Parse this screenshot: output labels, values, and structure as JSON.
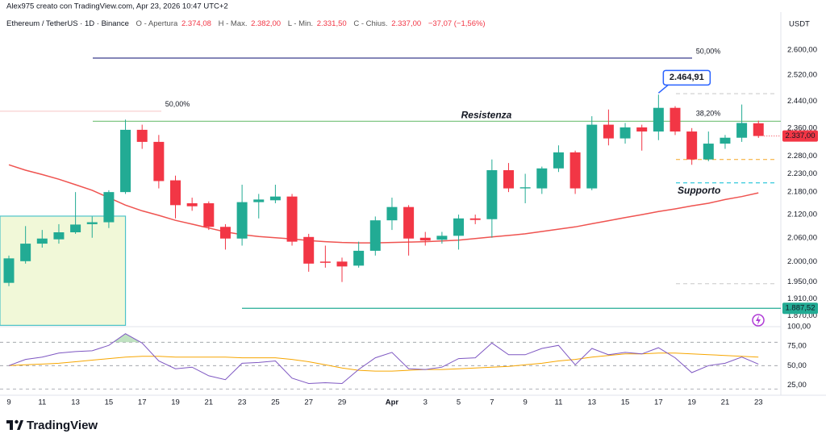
{
  "header": {
    "author": "Alex975 creato con TradingView.com, Apr 23, 2026 10:47 UTC+2",
    "o_label": "O - Apertura",
    "o": "2.374,08",
    "h_label": "H - Max.",
    "h": "2.382,00",
    "l_label": "L - Min.",
    "l": "2.331,50",
    "c_label": "C - Chius.",
    "c": "2.337,00",
    "change": "−37,07 (−1,56%)"
  },
  "footer": {
    "brand": "TradingView"
  },
  "chart_data": [
    {
      "type": "candlestick",
      "title": "Ethereum / TetherUS · 1D · Binance",
      "y_unit": "USDT",
      "categories": [
        "9",
        null,
        "11",
        null,
        "13",
        null,
        "15",
        null,
        "17",
        null,
        "19",
        null,
        "21",
        null,
        "23",
        null,
        "25",
        null,
        "27",
        null,
        "29",
        null,
        null,
        "Apr",
        null,
        "3",
        null,
        "5",
        null,
        "7",
        null,
        "9",
        null,
        "11",
        null,
        "13",
        null,
        "15",
        null,
        "17",
        null,
        "19",
        null,
        "21",
        null,
        "23"
      ],
      "open": [
        1948,
        2001,
        2045,
        2056,
        2074,
        2095,
        2100,
        2180,
        2355,
        2320,
        2212,
        2150,
        2150,
        2088,
        2058,
        2153,
        2158,
        2168,
        2062,
        2000,
        2000,
        1990,
        2027,
        2105,
        2140,
        2060,
        2055,
        2065,
        2110,
        2108,
        2240,
        2190,
        2190,
        2245,
        2290,
        2190,
        2370,
        2330,
        2362,
        2350,
        2420,
        2350,
        2270,
        2315,
        2332,
        2374.08
      ],
      "high": [
        2015,
        2090,
        2080,
        2095,
        2180,
        2115,
        2185,
        2385,
        2370,
        2340,
        2225,
        2165,
        2155,
        2095,
        2200,
        2175,
        2200,
        2175,
        2070,
        2040,
        2010,
        2050,
        2115,
        2165,
        2145,
        2075,
        2075,
        2120,
        2120,
        2270,
        2260,
        2230,
        2250,
        2310,
        2295,
        2395,
        2415,
        2375,
        2370,
        2460,
        2425,
        2360,
        2350,
        2340,
        2430,
        2382
      ],
      "low": [
        1940,
        1995,
        2035,
        2045,
        2070,
        2060,
        2085,
        2175,
        2300,
        2190,
        2110,
        2130,
        2080,
        2030,
        2040,
        2110,
        2150,
        2040,
        1975,
        1985,
        1950,
        1985,
        2015,
        2080,
        2015,
        2040,
        2045,
        2030,
        2095,
        2060,
        2180,
        2150,
        2175,
        2235,
        2175,
        2185,
        2310,
        2315,
        2295,
        2325,
        2340,
        2255,
        2265,
        2300,
        2320,
        2331.5
      ],
      "close": [
        2008,
        2045,
        2058,
        2074,
        2094,
        2100,
        2180,
        2355,
        2320,
        2210,
        2145,
        2142,
        2088,
        2058,
        2153,
        2160,
        2168,
        2050,
        1995,
        1997,
        1988,
        2027,
        2105,
        2140,
        2058,
        2053,
        2065,
        2110,
        2106,
        2240,
        2190,
        2193,
        2245,
        2290,
        2190,
        2370,
        2330,
        2362,
        2350,
        2420,
        2350,
        2270,
        2315,
        2332,
        2375,
        2337
      ],
      "up_color": "#22ab94",
      "down_color": "#f23645",
      "ma": {
        "color": "#ef5350",
        "values": [
          2255,
          2240,
          2228,
          2215,
          2200,
          2185,
          2165,
          2145,
          2130,
          2118,
          2105,
          2095,
          2085,
          2075,
          2068,
          2063,
          2060,
          2057,
          2053,
          2050,
          2048,
          2047,
          2047,
          2048,
          2049,
          2050,
          2052,
          2054,
          2058,
          2062,
          2066,
          2070,
          2076,
          2082,
          2088,
          2096,
          2104,
          2112,
          2120,
          2128,
          2135,
          2143,
          2150,
          2160,
          2168,
          2178
        ]
      },
      "zone": {
        "low": 1848,
        "high": 2116,
        "color": "#f1f8d8",
        "border": "#4dc3c9"
      },
      "log_scale": true,
      "grid": false,
      "ylim": [
        1845,
        2725
      ],
      "yticks": [
        {
          "value": 2600,
          "label": "2.600,00"
        },
        {
          "value": 2520,
          "label": "2.520,00"
        },
        {
          "value": 2440,
          "label": "2.440,00"
        },
        {
          "value": 2360,
          "label": "2.360,00"
        },
        {
          "value": 2280,
          "label": "2.280,00"
        },
        {
          "value": 2230,
          "label": "2.230,00"
        },
        {
          "value": 2180,
          "label": "2.180,00"
        },
        {
          "value": 2120,
          "label": "2.120,00"
        },
        {
          "value": 2060,
          "label": "2.060,00"
        },
        {
          "value": 2000,
          "label": "2.000,00"
        },
        {
          "value": 1950,
          "label": "1.950,00"
        },
        {
          "value": 1910,
          "label": "1.910,00"
        },
        {
          "value": 1870,
          "label": "1.870,00"
        }
      ],
      "last": {
        "value": 2337,
        "label": "2.337,00",
        "color": "#f23645"
      },
      "annotations": [
        {
          "kind": "hline",
          "value": 2574,
          "color": "#3b3f8c",
          "label": "50,00%",
          "label_color": "#5b5fc7"
        },
        {
          "kind": "hline",
          "value": 2410,
          "color": "#f8d0d1",
          "label": "50,00%",
          "label_color": "#f0605d"
        },
        {
          "kind": "hline",
          "value": 2380,
          "color": "#81c784",
          "label": "Resistenza",
          "label_color": "#f23645",
          "level_label": "38,20%",
          "level_color": "#66bb6a"
        },
        {
          "kind": "hline",
          "value": 2463,
          "color": "#c8c8c8",
          "dashed": true
        },
        {
          "kind": "hline",
          "value": 2270,
          "color": "#f5a623",
          "dashed": true
        },
        {
          "kind": "hline",
          "value": 2205,
          "color": "#00bcd4",
          "dashed": true,
          "label": "Supporto",
          "label_color": "#00bcd4"
        },
        {
          "kind": "hline",
          "value": 1946,
          "color": "#c8c8c8",
          "dashed": true
        },
        {
          "kind": "hline",
          "value": 1887.52,
          "color": "#22ab94",
          "label": "1.887,52",
          "label_color": "#ffffff"
        },
        {
          "kind": "callout",
          "value": 2464.91,
          "color": "#2962ff",
          "label": "2.464,91"
        }
      ]
    },
    {
      "type": "line",
      "series": [
        {
          "color": "#7e57c2",
          "values": [
            50,
            58,
            61,
            66,
            68,
            69,
            76,
            91,
            79,
            56,
            46,
            48,
            37,
            32,
            53,
            54,
            56,
            34,
            27,
            28,
            27,
            45,
            60,
            67,
            46,
            45,
            48,
            59,
            60,
            79,
            64,
            64,
            72,
            76,
            51,
            72,
            64,
            67,
            65,
            73,
            60,
            41,
            50,
            53,
            61,
            52
          ]
        },
        {
          "color": "#f7a600",
          "values": [
            50,
            51,
            52,
            53,
            55,
            57,
            59,
            61,
            62,
            62,
            61,
            61,
            61,
            61,
            60,
            60,
            60,
            58,
            55,
            51,
            47,
            44,
            43,
            43,
            44,
            45,
            45,
            46,
            47,
            48,
            49,
            51,
            53,
            56,
            58,
            61,
            63,
            65,
            65,
            66,
            66,
            65,
            64,
            63,
            62,
            61
          ]
        }
      ],
      "bands": [
        80,
        50,
        20
      ],
      "overbought_fill": "#a5d6a7",
      "ylim": [
        12,
        100
      ],
      "yticks": [
        {
          "value": 100,
          "label": "100,00"
        },
        {
          "value": 75,
          "label": "75,00"
        },
        {
          "value": 50,
          "label": "50,00"
        },
        {
          "value": 25,
          "label": "25,00"
        }
      ]
    }
  ]
}
